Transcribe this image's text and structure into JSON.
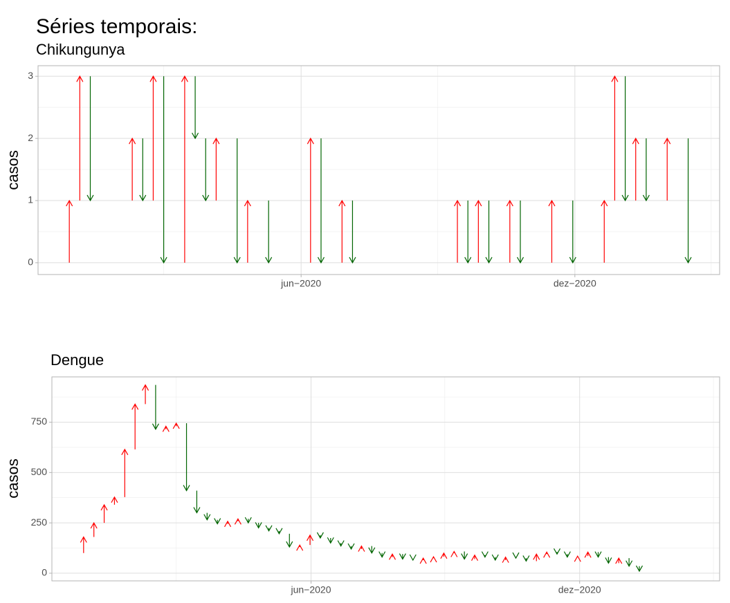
{
  "title": "Séries temporais:",
  "chart_data": [
    {
      "type": "arrow",
      "title": "Chikungunya",
      "ylabel": "casos",
      "categories": [
        null,
        null,
        null,
        null,
        null,
        null,
        null,
        null,
        null,
        null,
        null,
        null,
        null,
        null,
        null,
        null,
        null,
        null,
        null,
        null,
        null,
        null,
        null,
        null,
        null,
        null,
        null,
        null,
        null,
        null,
        null,
        null,
        null,
        null,
        null,
        null,
        null,
        null,
        null,
        null,
        null,
        null,
        null,
        null,
        null,
        null,
        null,
        null,
        null,
        null,
        null,
        null,
        null,
        null,
        null,
        null,
        null,
        null,
        null,
        null,
        null
      ],
      "values": [
        0,
        1,
        3,
        1,
        1,
        1,
        1,
        2,
        1,
        3,
        0,
        0,
        3,
        2,
        1,
        2,
        2,
        0,
        1,
        1,
        0,
        0,
        0,
        0,
        2,
        0,
        0,
        1,
        0,
        0,
        0,
        0,
        0,
        0,
        0,
        0,
        0,
        0,
        1,
        0,
        1,
        0,
        0,
        1,
        0,
        0,
        0,
        1,
        1,
        0,
        0,
        0,
        1,
        3,
        1,
        2,
        1,
        1,
        2,
        2,
        0
      ],
      "up_color": "#ff0000",
      "down_color": "#006400",
      "xlim": [
        -1.98,
        63.0
      ],
      "xticks": [
        {
          "value": 23.1,
          "label": "jun−2020"
        },
        {
          "value": 49.2,
          "label": "dez−2020"
        }
      ],
      "xminor": [
        10.0,
        36.1,
        62.2
      ],
      "ylim": [
        -0.19,
        3.17
      ],
      "yticks": [
        0,
        1,
        2,
        3
      ],
      "yminor": [
        0.5,
        1.5,
        2.5
      ],
      "grid": true
    },
    {
      "type": "arrow",
      "title": "Dengue",
      "ylabel": "casos",
      "categories": [
        null,
        null,
        null,
        null,
        null,
        null,
        null,
        null,
        null,
        null,
        null,
        null,
        null,
        null,
        null,
        null,
        null,
        null,
        null,
        null,
        null,
        null,
        null,
        null,
        null,
        null,
        null,
        null,
        null,
        null,
        null,
        null,
        null,
        null,
        null,
        null,
        null,
        null,
        null,
        null,
        null,
        null,
        null,
        null,
        null,
        null,
        null,
        null,
        null,
        null,
        null,
        null,
        null,
        null,
        null,
        null
      ],
      "values": [
        100,
        180,
        250,
        340,
        378,
        615,
        840,
        935,
        715,
        730,
        745,
        410,
        300,
        265,
        245,
        258,
        270,
        250,
        225,
        210,
        196,
        130,
        140,
        189,
        175,
        150,
        135,
        120,
        135,
        100,
        80,
        95,
        70,
        65,
        75,
        82,
        100,
        108,
        70,
        90,
        80,
        65,
        80,
        75,
        60,
        95,
        105,
        95,
        80,
        85,
        105,
        80,
        50,
        75,
        35,
        10
      ],
      "up_color": "#ff0000",
      "down_color": "#006400",
      "xlim": [
        -2.08,
        62.8
      ],
      "xticks": [
        {
          "value": 23.1,
          "label": "jun−2020"
        },
        {
          "value": 49.2,
          "label": "dez−2020"
        }
      ],
      "xminor": [
        10.0,
        36.1,
        62.2
      ],
      "ylim": [
        -38,
        975
      ],
      "yticks": [
        0,
        250,
        500,
        750
      ],
      "yminor": [
        125,
        375,
        625,
        875
      ],
      "grid": true
    }
  ]
}
